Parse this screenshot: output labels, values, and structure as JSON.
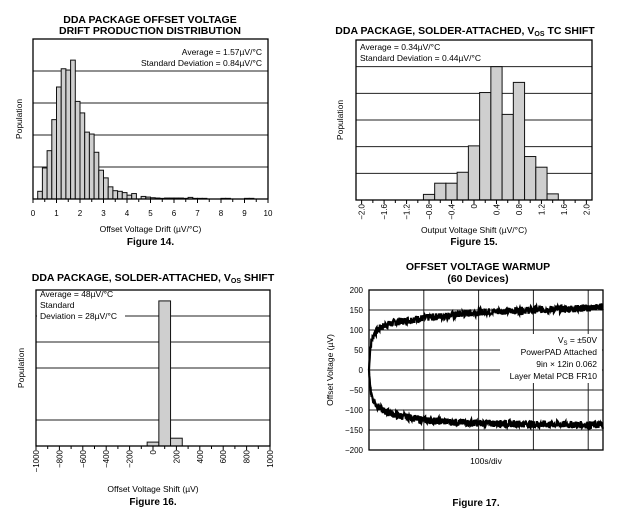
{
  "chart_data": [
    {
      "type": "bar",
      "id": "fig14",
      "title": [
        "DDA PACKAGE OFFSET VOLTAGE",
        "DRIFT PRODUCTION DISTRIBUTION"
      ],
      "caption": "Figure 14.",
      "xlabel": "Offset Voltage Drift (µV/°C)",
      "ylabel": "Population",
      "xlim": [
        0,
        10
      ],
      "ylim": [
        0,
        5
      ],
      "xticks": [
        "0",
        "1",
        "2",
        "3",
        "4",
        "5",
        "6",
        "7",
        "8",
        "9",
        "10"
      ],
      "grid_y": [
        1,
        2,
        3,
        4
      ],
      "bin_start": 0.2,
      "bin_width": 0.2,
      "values": [
        0.24,
        0.97,
        1.51,
        2.48,
        3.5,
        4.07,
        4.03,
        4.34,
        3.05,
        2.69,
        2.09,
        2.03,
        1.46,
        0.9,
        0.66,
        0.38,
        0.26,
        0.24,
        0.2,
        0.12,
        0.17,
        0,
        0.08,
        0.06,
        0.04,
        0.03,
        0.02,
        0.03,
        0.03,
        0.03,
        0.03,
        0.02,
        0.05,
        0.02,
        0.02,
        0.02,
        0,
        0,
        0,
        0.02,
        0.02,
        0,
        0,
        0,
        0.02,
        0.02,
        0
      ],
      "annotations": [
        "Average = 1.57µV/°C",
        "Standard Deviation = 0.84µV/°C"
      ]
    },
    {
      "type": "bar",
      "id": "fig15",
      "title_parts": [
        "DDA PACKAGE, SOLDER-ATTACHED, V",
        "OS",
        " TC SHIFT"
      ],
      "caption": "Figure 15.",
      "xlabel": "Output Voltage Shift (µV/°C)",
      "ylabel": "Population",
      "xlim": [
        -2.1,
        2.1
      ],
      "ylim": [
        0,
        6
      ],
      "xticks": [
        "−2.0",
        "−1.6",
        "−1.2",
        "−0.8",
        "−0.4",
        "0",
        "0.4",
        "0.8",
        "1.2",
        "1.6",
        "2.0"
      ],
      "xtick_values": [
        -2.0,
        -1.6,
        -1.2,
        -0.8,
        -0.4,
        0,
        0.4,
        0.8,
        1.2,
        1.6,
        2.0
      ],
      "grid_y": [
        1,
        2,
        3,
        4,
        5
      ],
      "bin_start": -0.9,
      "bin_width": 0.2,
      "values": [
        0.21,
        0.63,
        0.63,
        1.04,
        2.03,
        4.03,
        5.0,
        3.21,
        4.41,
        1.63,
        1.23,
        0.23
      ],
      "annotations": [
        "Average = 0.34µV/°C",
        "Standard Deviation = 0.44µV/°C"
      ]
    },
    {
      "type": "bar",
      "id": "fig16",
      "title_parts": [
        "DDA PACKAGE, SOLDER-ATTACHED, V",
        "OS",
        " SHIFT"
      ],
      "caption": "Figure 16.",
      "xlabel": "Offset Voltage Shift (µV)",
      "ylabel": "Population",
      "xlim": [
        -1000,
        1000
      ],
      "ylim": [
        0,
        6
      ],
      "xticks": [
        "−1000",
        "−800",
        "−600",
        "−400",
        "−200",
        "0",
        "200",
        "400",
        "600",
        "800",
        "1000"
      ],
      "xtick_values": [
        -1000,
        -800,
        -600,
        -400,
        -200,
        0,
        200,
        400,
        600,
        800,
        1000
      ],
      "grid_y": [
        1,
        3,
        4,
        5
      ],
      "bin_start": -50,
      "bin_width": 100,
      "values": [
        0.15,
        5.58,
        0.3
      ],
      "annotations": [
        "Average = 48µV/°C",
        "Standard",
        "Deviation = 28µV/°C"
      ]
    },
    {
      "type": "line",
      "id": "fig17",
      "title": [
        "OFFSET VOLTAGE WARMUP",
        "(60 Devices)"
      ],
      "caption": "Figure 17.",
      "xlabel": "100s/div",
      "ylabel": "Offset Voltage (µV)",
      "xlim": [
        0,
        427
      ],
      "ylim": [
        -200,
        200
      ],
      "yticks": [
        "200",
        "150",
        "100",
        "50",
        "0",
        "−50",
        "−100",
        "−150",
        "−200"
      ],
      "ytick_values": [
        200,
        150,
        100,
        50,
        0,
        -50,
        -100,
        -150,
        -200
      ],
      "grid_x": [
        100,
        200,
        300,
        400
      ],
      "noise_uV": 9,
      "series": [
        {
          "name": "upper",
          "x": [
            0,
            2,
            5,
            10,
            20,
            30,
            50,
            100,
            150,
            200,
            300,
            400,
            427
          ],
          "y": [
            0,
            50,
            75,
            92,
            105,
            112,
            120,
            130,
            137,
            145,
            150,
            155,
            158
          ]
        },
        {
          "name": "lower",
          "x": [
            0,
            2,
            5,
            10,
            20,
            30,
            50,
            100,
            150,
            200,
            300,
            400,
            427
          ],
          "y": [
            0,
            -40,
            -65,
            -82,
            -96,
            -104,
            -113,
            -125,
            -130,
            -133,
            -135,
            -137,
            -138
          ]
        }
      ],
      "annotations": [
        [
          "V",
          "S",
          " = ±50V"
        ],
        "PowerPAD Attached",
        "9in × 12in 0.062",
        "Layer Metal PCB FR10"
      ]
    }
  ]
}
